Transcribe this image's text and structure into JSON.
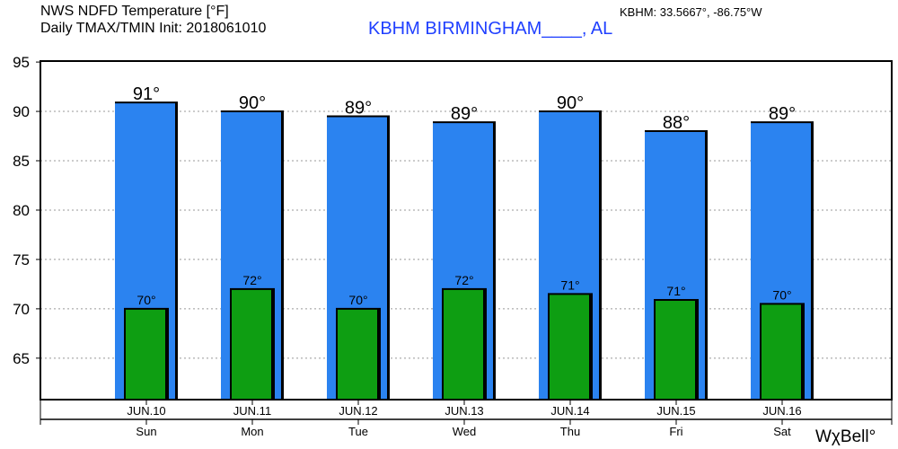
{
  "header": {
    "title_line1": "NWS NDFD Temperature [°F]",
    "title_line2": "Daily TMAX/TMIN Init: 2018061010",
    "station": "KBHM BIRMINGHAM____, AL",
    "coords": "KBHM: 33.5667°, -86.75°W",
    "logo": "WχBell°"
  },
  "colors": {
    "tmax": "#2b83f0",
    "tmin": "#0e9e12",
    "station": "#2040ff"
  },
  "chart_data": {
    "type": "bar",
    "title": "NWS NDFD Temperature [°F] Daily TMAX/TMIN",
    "categories": [
      "JUN.10",
      "JUN.11",
      "JUN.12",
      "JUN.13",
      "JUN.14",
      "JUN.15",
      "JUN.16"
    ],
    "days": [
      "Sun",
      "Mon",
      "Tue",
      "Wed",
      "Thu",
      "Fri",
      "Sat"
    ],
    "series": [
      {
        "name": "TMAX",
        "values": [
          90.9,
          90.0,
          89.5,
          88.9,
          90.0,
          88.0,
          88.9
        ],
        "labels": [
          "91°",
          "90°",
          "89°",
          "89°",
          "90°",
          "88°",
          "89°"
        ]
      },
      {
        "name": "TMIN",
        "values": [
          70.0,
          72.0,
          70.0,
          72.0,
          71.5,
          70.9,
          70.5
        ],
        "labels": [
          "70°",
          "72°",
          "70°",
          "72°",
          "71°",
          "71°",
          "70°"
        ]
      }
    ],
    "yticks": [
      65,
      70,
      75,
      80,
      85,
      90,
      95
    ],
    "ylim": [
      60.8,
      95.1
    ],
    "grid": true,
    "xlabel": "",
    "ylabel": ""
  }
}
